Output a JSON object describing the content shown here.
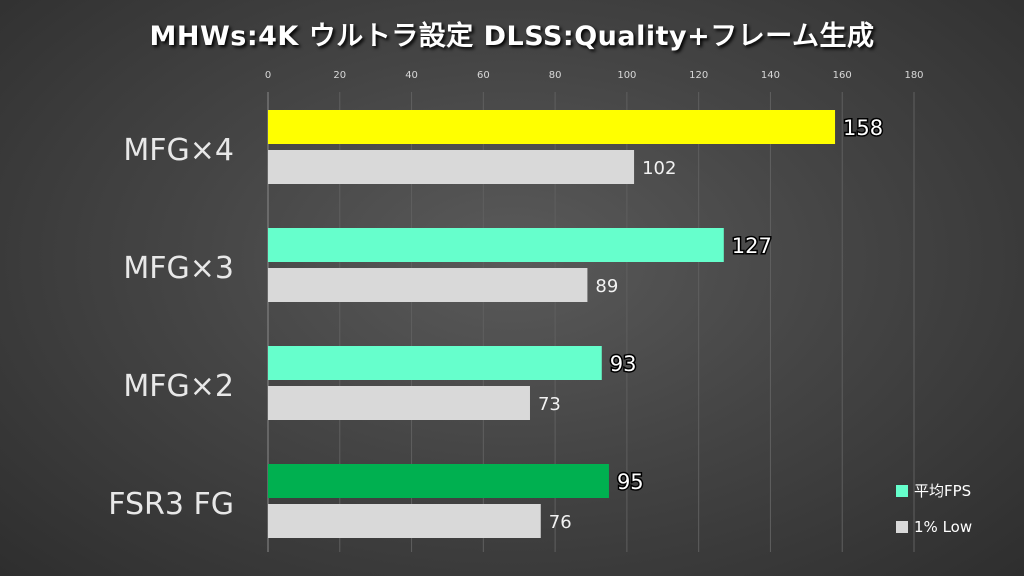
{
  "chart_data": {
    "type": "bar",
    "orientation": "horizontal",
    "title": "MHWs:4K ウルトラ設定 DLSS:Quality+フレーム生成",
    "categories": [
      "MFG×4",
      "MFG×3",
      "MFG×2",
      "FSR3 FG"
    ],
    "series": [
      {
        "name": "平均FPS",
        "values": [
          158,
          127,
          93,
          95
        ],
        "colors": [
          "#ffff00",
          "#66ffcc",
          "#66ffcc",
          "#00b050"
        ]
      },
      {
        "name": "1% Low",
        "values": [
          102,
          89,
          73,
          76
        ],
        "colors": [
          "#d9d9d9",
          "#d9d9d9",
          "#d9d9d9",
          "#d9d9d9"
        ]
      }
    ],
    "xlim": [
      0,
      180
    ],
    "xticks": [
      0,
      20,
      40,
      60,
      80,
      100,
      120,
      140,
      160,
      180
    ],
    "xtick_labels": [
      "0",
      "20",
      "40",
      "60",
      "80",
      "100",
      "120",
      "140",
      "160",
      "180"
    ],
    "grid": true,
    "legend_position": "bottom-right",
    "legend": [
      {
        "label": "平均FPS",
        "color": "#66ffcc"
      },
      {
        "label": "1% Low",
        "color": "#d9d9d9"
      }
    ]
  }
}
